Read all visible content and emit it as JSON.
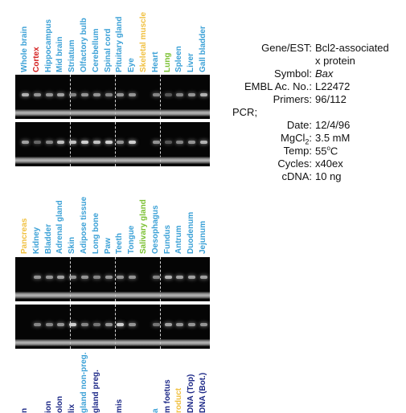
{
  "colors": {
    "blue": "#3aa0d6",
    "red": "#d42020",
    "yellow": "#f0c040",
    "green": "#7ac030",
    "navy": "#1e2a88"
  },
  "panel1": {
    "labels": [
      {
        "text": "Whole brain",
        "color": "blue"
      },
      {
        "text": "Cortex",
        "color": "red"
      },
      {
        "text": "Hippocampus",
        "color": "blue"
      },
      {
        "text": "Mid brain",
        "color": "blue"
      },
      {
        "text": "Striatum",
        "color": "blue"
      },
      {
        "text": "Olfactory bulb",
        "color": "blue"
      },
      {
        "text": "Cerebellum",
        "color": "blue"
      },
      {
        "text": "Spinal cord",
        "color": "blue"
      },
      {
        "text": "Pituitary gland",
        "color": "blue"
      },
      {
        "text": "Eye",
        "color": "blue"
      },
      {
        "text": "Skeletal muscle",
        "color": "yellow"
      },
      {
        "text": "Heart",
        "color": "blue"
      },
      {
        "text": "Lung",
        "color": "green"
      },
      {
        "text": "Spleen",
        "color": "blue"
      },
      {
        "text": "Liver",
        "color": "blue"
      },
      {
        "text": "Gall bladder",
        "color": "blue"
      }
    ],
    "gel_top_intensity": [
      0.8,
      0.6,
      0.6,
      0.7,
      0.5,
      0.6,
      0.6,
      0.5,
      0.6,
      0.6,
      0.0,
      0.5,
      0.2,
      0.5,
      0.6,
      0.8
    ],
    "gel_bottom_intensity": [
      0.7,
      0.3,
      0.5,
      0.9,
      0.9,
      1.0,
      0.9,
      1.0,
      0.6,
      1.0,
      0.0,
      0.6,
      0.2,
      0.5,
      0.6,
      0.8
    ]
  },
  "panel2": {
    "labels": [
      {
        "text": "Pancreas",
        "color": "yellow"
      },
      {
        "text": "Kidney",
        "color": "blue"
      },
      {
        "text": "Bladder",
        "color": "blue"
      },
      {
        "text": "Adrenal gland",
        "color": "blue"
      },
      {
        "text": "Skin",
        "color": "blue"
      },
      {
        "text": "Adipose tissue",
        "color": "blue"
      },
      {
        "text": "Long bone",
        "color": "blue"
      },
      {
        "text": "Paw",
        "color": "blue"
      },
      {
        "text": "Teeth",
        "color": "blue"
      },
      {
        "text": "Tongue",
        "color": "blue"
      },
      {
        "text": "Salivary gland",
        "color": "green"
      },
      {
        "text": "Oesophagus",
        "color": "blue"
      },
      {
        "text": "Fundus",
        "color": "blue"
      },
      {
        "text": "Antrum",
        "color": "blue"
      },
      {
        "text": "Duodenum",
        "color": "blue"
      },
      {
        "text": "Jejunum",
        "color": "blue"
      }
    ],
    "gel_top_intensity": [
      0.0,
      0.6,
      0.6,
      0.7,
      0.6,
      0.6,
      0.5,
      0.6,
      0.6,
      0.6,
      0.0,
      0.5,
      0.8,
      0.7,
      0.7,
      0.7
    ],
    "gel_bottom_intensity": [
      0.0,
      0.5,
      0.5,
      0.6,
      1.0,
      0.5,
      0.4,
      0.6,
      1.0,
      0.6,
      0.0,
      0.4,
      0.7,
      0.6,
      0.6,
      0.6
    ]
  },
  "panel3": {
    "labels": [
      {
        "text": "n",
        "color": "navy"
      },
      {
        "text": "",
        "color": "navy"
      },
      {
        "text": "ion",
        "color": "navy"
      },
      {
        "text": "olon",
        "color": "navy"
      },
      {
        "text": "lix",
        "color": "navy"
      },
      {
        "text": "gland non-preg.",
        "color": "blue"
      },
      {
        "text": "gland preg.",
        "color": "navy"
      },
      {
        "text": "",
        "color": "navy"
      },
      {
        "text": "mis",
        "color": "navy"
      },
      {
        "text": "",
        "color": "navy"
      },
      {
        "text": "",
        "color": "navy"
      },
      {
        "text": "a",
        "color": "blue"
      },
      {
        "text": "m foetus",
        "color": "navy"
      },
      {
        "text": "roduct",
        "color": "yellow"
      },
      {
        "text": "DNA (Top)",
        "color": "navy"
      },
      {
        "text": "DNA (Bot.)",
        "color": "navy"
      }
    ]
  },
  "info": {
    "gene_label": "Gene/EST:",
    "gene_value_1": "Bcl2-associated",
    "gene_value_2": "x protein",
    "symbol_label": "Symbol:",
    "symbol_value": "Bax",
    "embl_label": "EMBL Ac. No.:",
    "embl_value": "L22472",
    "primers_label": "Primers:",
    "primers_value": "96/112",
    "pcr_label": "PCR;",
    "date_label": "Date:",
    "date_value": "12/4/96",
    "mgcl_label_pre": "MgCl",
    "mgcl_label_sub": "2",
    "mgcl_label_post": ":",
    "mgcl_value": "3.5 mM",
    "temp_label": "Temp:",
    "temp_value_pre": "55",
    "temp_value_sup": "o",
    "temp_value_post": "C",
    "cycles_label": "Cycles:",
    "cycles_value": "x40ex",
    "cdna_label": "cDNA:",
    "cdna_value": "10 ng"
  }
}
